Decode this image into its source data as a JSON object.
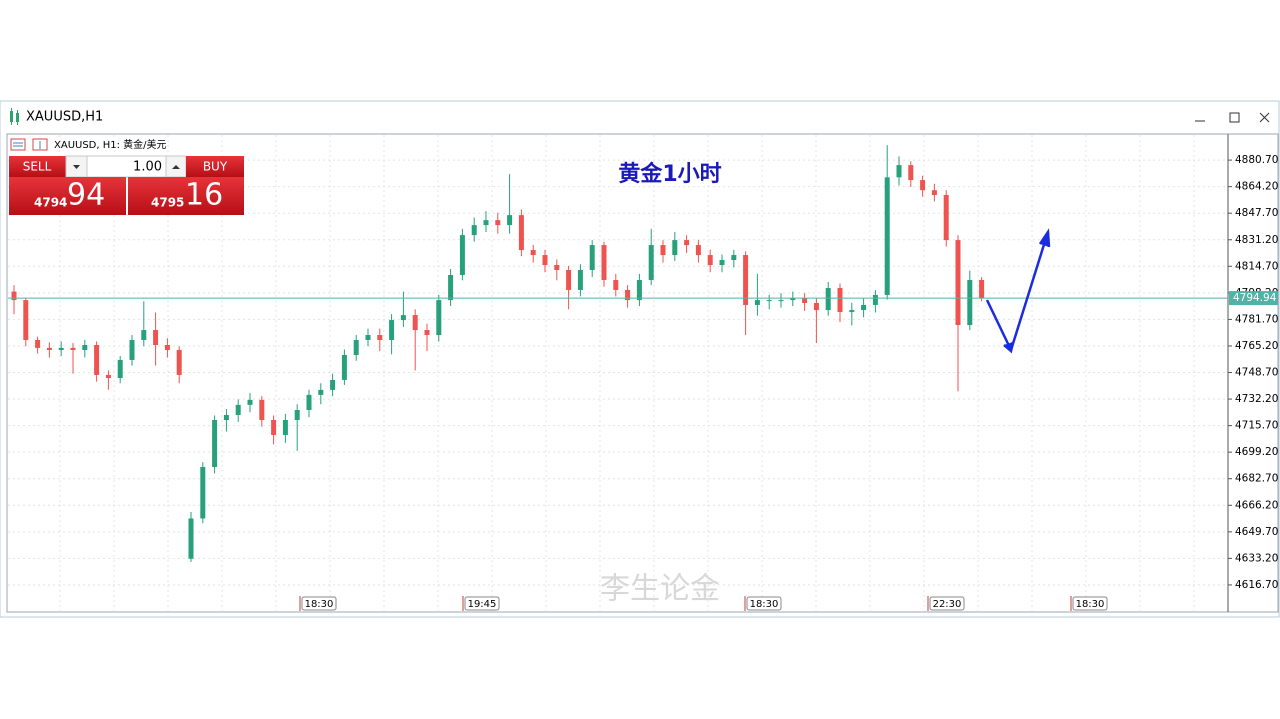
{
  "window": {
    "title": "XAUUSD,H1"
  },
  "trade_panel": {
    "sell": "SELL",
    "buy": "BUY",
    "lot": "1.00",
    "bid_small": "4794",
    "bid_big": "94",
    "ask_small": "4795",
    "ask_big": "16"
  },
  "chart_data": {
    "type": "candlestick",
    "header": "XAUUSD, H1:  黄金/美元",
    "title": "黄金1小时",
    "watermark": "李生论金",
    "open": [
      4799.0,
      4793.7,
      4768.9,
      4764.0,
      4762.7,
      4764.0,
      4762.7,
      4765.8,
      4747.2,
      4745.3,
      4756.5,
      4768.9,
      4775.1,
      4765.8,
      4762.7,
      4633.0,
      4658.0,
      4690.0,
      4719.2,
      4722.3,
      4728.6,
      4731.7,
      4719.2,
      4709.9,
      4719.2,
      4725.4,
      4734.8,
      4737.9,
      4744.1,
      4759.6,
      4768.9,
      4772.0,
      4768.9,
      4781.3,
      4784.4,
      4775.1,
      4772.0,
      4793.7,
      4809.3,
      4834.1,
      4840.3,
      4843.4,
      4840.3,
      4846.5,
      4824.8,
      4821.7,
      4815.5,
      4812.4,
      4800.0,
      4812.4,
      4827.9,
      4806.2,
      4800.0,
      4793.7,
      4806.2,
      4827.9,
      4821.7,
      4831.0,
      4827.9,
      4821.7,
      4815.5,
      4818.6,
      4821.7,
      4790.7,
      4793.7,
      4793.7,
      4793.7,
      4795.0,
      4791.9,
      4787.5,
      4801.2,
      4786.3,
      4787.5,
      4790.7,
      4796.9,
      4870.0,
      4877.6,
      4868.3,
      4862.0,
      4859.0,
      4831.0,
      4778.2,
      4806.2
    ],
    "high": [
      4803.0,
      4795.0,
      4771.0,
      4767.5,
      4768.0,
      4767.0,
      4769.0,
      4768.0,
      4750.0,
      4759.0,
      4772.0,
      4793.0,
      4786.0,
      4770.0,
      4765.0,
      4662.0,
      4693.0,
      4722.0,
      4726.0,
      4732.0,
      4736.0,
      4734.0,
      4722.0,
      4723.0,
      4729.0,
      4738.0,
      4742.0,
      4748.0,
      4763.0,
      4772.0,
      4776.0,
      4776.0,
      4785.0,
      4799.0,
      4788.0,
      4779.0,
      4797.0,
      4813.0,
      4838.0,
      4845.0,
      4849.0,
      4848.0,
      4872.0,
      4850.0,
      4828.0,
      4825.0,
      4819.0,
      4815.0,
      4816.0,
      4831.0,
      4830.0,
      4810.0,
      4803.0,
      4810.0,
      4838.0,
      4831.0,
      4836.0,
      4834.0,
      4831.0,
      4825.0,
      4822.0,
      4825.0,
      4824.0,
      4810.0,
      4797.0,
      4798.0,
      4799.0,
      4798.0,
      4795.0,
      4805.0,
      4804.0,
      4792.0,
      4795.0,
      4800.0,
      4890.0,
      4883.0,
      4880.0,
      4871.0,
      4866.0,
      4862.0,
      4834.0,
      4812.0,
      4808.0
    ],
    "low": [
      4785.0,
      4765.0,
      4760.5,
      4758.0,
      4759.0,
      4748.0,
      4758.0,
      4743.0,
      4738.0,
      4742.0,
      4753.0,
      4765.0,
      4753.0,
      4758.0,
      4742.0,
      4631.0,
      4655.0,
      4686.0,
      4712.0,
      4718.0,
      4724.0,
      4715.0,
      4704.0,
      4705.0,
      4700.0,
      4721.0,
      4729.0,
      4734.0,
      4741.0,
      4756.0,
      4765.0,
      4762.0,
      4760.0,
      4777.0,
      4750.0,
      4762.0,
      4768.0,
      4790.0,
      4806.0,
      4830.0,
      4836.0,
      4835.0,
      4835.0,
      4821.0,
      4817.0,
      4811.0,
      4806.0,
      4788.0,
      4796.0,
      4808.0,
      4802.0,
      4796.0,
      4789.0,
      4790.0,
      4803.0,
      4817.0,
      4818.0,
      4823.0,
      4817.0,
      4811.0,
      4811.0,
      4814.0,
      4772.0,
      4784.0,
      4788.0,
      4789.0,
      4790.0,
      4787.0,
      4767.0,
      4784.0,
      4780.0,
      4778.0,
      4783.0,
      4786.0,
      4794.0,
      4865.0,
      4864.0,
      4858.0,
      4855.0,
      4827.0,
      4737.0,
      4775.0,
      4793.0
    ],
    "close": [
      4793.7,
      4768.9,
      4764.0,
      4762.7,
      4764.0,
      4762.7,
      4765.8,
      4747.2,
      4745.3,
      4756.5,
      4768.9,
      4775.1,
      4765.8,
      4762.7,
      4747.2,
      4658.0,
      4690.0,
      4719.2,
      4722.3,
      4728.6,
      4731.7,
      4719.2,
      4709.9,
      4719.2,
      4725.4,
      4734.8,
      4737.9,
      4744.1,
      4759.6,
      4768.9,
      4772.0,
      4768.9,
      4781.3,
      4784.4,
      4775.1,
      4772.0,
      4793.7,
      4809.3,
      4834.1,
      4840.3,
      4843.4,
      4840.3,
      4846.5,
      4824.8,
      4821.7,
      4815.5,
      4812.4,
      4800.0,
      4812.4,
      4827.9,
      4806.2,
      4800.0,
      4793.7,
      4806.2,
      4827.9,
      4821.7,
      4831.0,
      4827.9,
      4821.7,
      4815.5,
      4818.6,
      4821.7,
      4790.7,
      4793.7,
      4793.7,
      4793.7,
      4795.0,
      4791.9,
      4787.5,
      4801.2,
      4786.3,
      4787.5,
      4790.7,
      4796.9,
      4870.0,
      4877.6,
      4868.3,
      4862.0,
      4859.0,
      4831.0,
      4778.2,
      4806.2,
      4794.94
    ],
    "up_color": "#26a17b",
    "down_color": "#ef5350",
    "price_line_color": "#4fb3a6",
    "ylim": [
      4600.5,
      4896.3
    ],
    "yticks": [
      {
        "value": 4880.7,
        "label": "4880.70"
      },
      {
        "value": 4864.2,
        "label": "4864.20"
      },
      {
        "value": 4847.7,
        "label": "4847.70"
      },
      {
        "value": 4831.2,
        "label": "4831.20"
      },
      {
        "value": 4814.7,
        "label": "4814.70"
      },
      {
        "value": 4798.2,
        "label": "4798.20"
      },
      {
        "value": 4781.7,
        "label": "4781.70"
      },
      {
        "value": 4765.2,
        "label": "4765.20"
      },
      {
        "value": 4748.7,
        "label": "4748.70"
      },
      {
        "value": 4732.2,
        "label": "4732.20"
      },
      {
        "value": 4715.7,
        "label": "4715.70"
      },
      {
        "value": 4699.2,
        "label": "4699.20"
      },
      {
        "value": 4682.7,
        "label": "4682.70"
      },
      {
        "value": 4666.2,
        "label": "4666.20"
      },
      {
        "value": 4649.7,
        "label": "4649.70"
      },
      {
        "value": 4633.2,
        "label": "4633.20"
      },
      {
        "value": 4616.7,
        "label": "4616.70"
      }
    ],
    "grid": true,
    "time_markers": [
      "18:30",
      "19:45",
      "18:30",
      "22:30",
      "18:30"
    ]
  }
}
